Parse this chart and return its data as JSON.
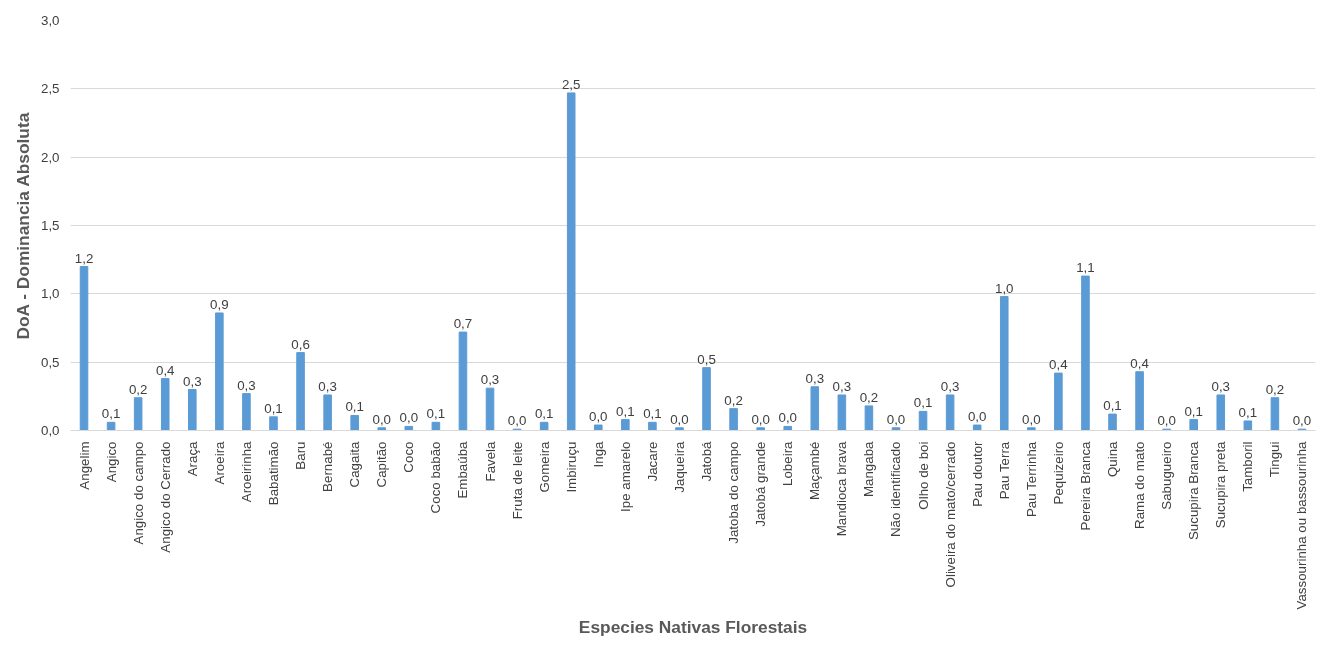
{
  "chart_data": {
    "type": "bar",
    "xlabel": "Especies Nativas Florestais",
    "ylabel": "DoA - Dominancia Absoluta",
    "categories": [
      "Angelim",
      "Angico",
      "Angico do campo",
      "Angico do Cerrado",
      "Araça",
      "Aroeira",
      "Aroeirinha",
      "Babatimão",
      "Baru",
      "Bernabé",
      "Cagaita",
      "Capitão",
      "Coco",
      "Coco babão",
      "Embaúba",
      "Favela",
      "Fruta de leite",
      "Gomeira",
      "Imbiruçu",
      "Inga",
      "Ipe amarelo",
      "Jacare",
      "Jaqueira",
      "Jatobá",
      "Jatoba do campo",
      "Jatobá grande",
      "Lobeira",
      "Maçambé",
      "Mandioca brava",
      "Mangaba",
      "Não identificado",
      "Olho de boi",
      "Oliveira do mato/cerrado",
      "Pau doutor",
      "Pau Terra",
      "Pau Terrinha",
      "Pequizeiro",
      "Pereira Branca",
      "Quina",
      "Rama do mato",
      "Sabugueiro",
      "Sucupira Branca",
      "Sucupira preta",
      "Tamboril",
      "Tingui",
      "Vassourinha ou bassourinha"
    ],
    "values": [
      1.2,
      0.06,
      0.24,
      0.38,
      0.3,
      0.86,
      0.27,
      0.1,
      0.57,
      0.26,
      0.11,
      0.02,
      0.03,
      0.06,
      0.72,
      0.31,
      0.01,
      0.06,
      2.47,
      0.04,
      0.08,
      0.06,
      0.02,
      0.46,
      0.16,
      0.02,
      0.03,
      0.32,
      0.26,
      0.18,
      0.02,
      0.14,
      0.26,
      0.04,
      0.98,
      0.02,
      0.42,
      1.13,
      0.12,
      0.43,
      0.01,
      0.08,
      0.26,
      0.07,
      0.24,
      0.01
    ],
    "value_labels": [
      "1,2",
      "0,1",
      "0,2",
      "0,4",
      "0,3",
      "0,9",
      "0,3",
      "0,1",
      "0,6",
      "0,3",
      "0,1",
      "0,0",
      "0,0",
      "0,1",
      "0,7",
      "0,3",
      "0,0",
      "0,1",
      "2,5",
      "0,0",
      "0,1",
      "0,1",
      "0,0",
      "0,5",
      "0,2",
      "0,0",
      "0,0",
      "0,3",
      "0,3",
      "0,2",
      "0,0",
      "0,1",
      "0,3",
      "0,0",
      "1,0",
      "0,0",
      "0,4",
      "1,1",
      "0,1",
      "0,4",
      "0,0",
      "0,1",
      "0,3",
      "0,1",
      "0,2",
      "0,0"
    ],
    "color": "#5b9bd5",
    "ylim": [
      0,
      3
    ],
    "yticks": [
      {
        "value": 0,
        "label": "0,0"
      },
      {
        "value": 0.5,
        "label": "0,5"
      },
      {
        "value": 1,
        "label": "1,0"
      },
      {
        "value": 1.5,
        "label": "1,5"
      },
      {
        "value": 2,
        "label": "2,0"
      },
      {
        "value": 2.5,
        "label": "2,5"
      },
      {
        "value": 3,
        "label": "3,0"
      }
    ],
    "grid": "y"
  }
}
